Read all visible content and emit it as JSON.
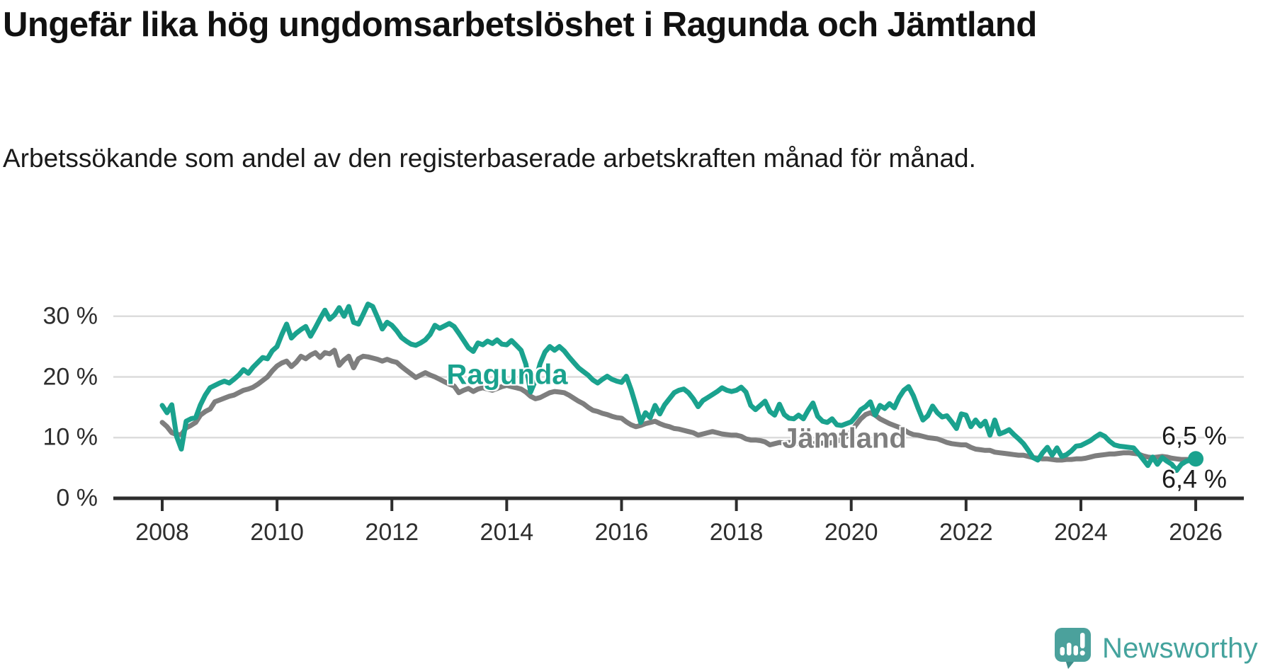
{
  "header": {
    "title": "Ungefär lika hög ungdomsarbetslöshet i Ragunda och Jämtland",
    "subtitle": "Arbetssökande som andel av den registerbaserade arbetskraften månad för månad."
  },
  "chart_data": {
    "type": "line",
    "title": "Ungefär lika hög ungdomsarbetslöshet i Ragunda och Jämtland",
    "xlabel": "",
    "ylabel": "Arbetssökande som andel av den registerbaserade arbetskraften",
    "x_start_year": 2008,
    "x_end_year": 2026,
    "x_step_months": 1,
    "x_ticks": [
      "2008",
      "2010",
      "2012",
      "2014",
      "2016",
      "2018",
      "2020",
      "2022",
      "2024",
      "2026"
    ],
    "y_ticks": [
      {
        "value": 30,
        "label": "30 %"
      },
      {
        "value": 20,
        "label": "20 %"
      },
      {
        "value": 10,
        "label": "10 %"
      },
      {
        "value": 0,
        "label": "0 %"
      }
    ],
    "ylim": [
      0,
      33
    ],
    "grid": "horizontal",
    "legend_position": "inline-labels",
    "series": [
      {
        "name": "Ragunda",
        "color": "#1aa28e",
        "end_label": "6,5 %",
        "end_marker": true,
        "values": [
          15.3,
          14.1,
          15.4,
          10.2,
          8.1,
          12.7,
          13.1,
          13.3,
          15.4,
          17.0,
          18.2,
          18.6,
          19.0,
          19.3,
          19.0,
          19.6,
          20.3,
          21.2,
          20.6,
          21.6,
          22.4,
          23.2,
          23.0,
          24.3,
          25.0,
          27.0,
          28.7,
          26.4,
          27.2,
          27.8,
          28.3,
          26.7,
          28.1,
          29.6,
          31.0,
          29.5,
          30.2,
          31.4,
          30.0,
          31.6,
          29.0,
          28.7,
          30.3,
          32.0,
          31.6,
          29.8,
          27.9,
          29.0,
          28.5,
          27.6,
          26.5,
          25.9,
          25.4,
          25.2,
          25.6,
          26.1,
          27.0,
          28.5,
          28.0,
          28.4,
          28.8,
          28.3,
          27.2,
          26.0,
          24.8,
          24.2,
          25.6,
          25.3,
          25.9,
          25.5,
          26.1,
          25.4,
          25.3,
          26.0,
          25.2,
          24.4,
          22.1,
          17.5,
          19.4,
          22.2,
          24.1,
          25.0,
          24.4,
          25.0,
          24.3,
          23.3,
          22.4,
          21.5,
          20.9,
          20.3,
          19.5,
          19.0,
          19.6,
          20.1,
          19.6,
          19.3,
          19.1,
          20.1,
          17.9,
          15.3,
          12.5,
          14.1,
          13.3,
          15.3,
          13.9,
          15.4,
          16.4,
          17.4,
          17.8,
          18.0,
          17.4,
          16.4,
          15.1,
          16.1,
          16.6,
          17.1,
          17.6,
          18.2,
          17.8,
          17.6,
          17.8,
          18.3,
          17.5,
          15.3,
          14.6,
          15.3,
          16.0,
          14.3,
          13.7,
          15.5,
          13.8,
          13.2,
          13.1,
          13.7,
          13.1,
          14.5,
          15.7,
          13.5,
          12.7,
          12.5,
          13.1,
          12.1,
          12.0,
          12.3,
          12.6,
          13.5,
          14.6,
          15.1,
          15.9,
          13.7,
          15.3,
          14.8,
          15.6,
          14.9,
          16.6,
          17.8,
          18.4,
          16.9,
          14.8,
          12.9,
          13.6,
          15.2,
          14.1,
          13.4,
          13.6,
          12.6,
          11.5,
          13.9,
          13.7,
          11.8,
          12.9,
          11.9,
          12.7,
          10.4,
          12.9,
          10.6,
          10.9,
          11.3,
          10.5,
          9.8,
          9.0,
          7.9,
          6.7,
          6.3,
          7.5,
          8.4,
          7.1,
          8.3,
          6.9,
          7.2,
          7.8,
          8.6,
          8.7,
          9.1,
          9.5,
          10.1,
          10.6,
          10.2,
          9.4,
          8.8,
          8.6,
          8.5,
          8.4,
          8.3,
          7.4,
          6.4,
          5.4,
          6.8,
          5.6,
          6.7,
          6.1,
          5.6,
          4.6,
          5.6,
          6.1,
          6.3,
          6.5
        ]
      },
      {
        "name": "Jämtland",
        "color": "#7e7e7e",
        "end_label": "6,4 %",
        "end_marker": false,
        "values": [
          12.5,
          11.8,
          10.8,
          10.5,
          10.5,
          11.6,
          12.0,
          12.5,
          13.7,
          14.3,
          14.7,
          15.9,
          16.2,
          16.5,
          16.8,
          17.0,
          17.4,
          17.8,
          18.0,
          18.3,
          18.8,
          19.4,
          20.0,
          21.0,
          21.8,
          22.3,
          22.6,
          21.7,
          22.4,
          23.4,
          23.0,
          23.6,
          24.0,
          23.2,
          24.0,
          23.8,
          24.4,
          21.9,
          22.8,
          23.4,
          21.5,
          23.0,
          23.4,
          23.3,
          23.1,
          22.9,
          22.6,
          22.9,
          22.6,
          22.4,
          21.7,
          21.1,
          20.5,
          19.9,
          20.3,
          20.7,
          20.3,
          20.0,
          19.6,
          19.2,
          18.8,
          18.5,
          17.4,
          17.8,
          18.1,
          17.6,
          18.0,
          18.2,
          18.0,
          17.8,
          18.1,
          18.4,
          18.6,
          18.4,
          18.2,
          18.0,
          17.5,
          16.8,
          16.4,
          16.6,
          17.0,
          17.4,
          17.6,
          17.5,
          17.4,
          17.0,
          16.5,
          16.0,
          15.6,
          15.0,
          14.5,
          14.3,
          14.0,
          13.8,
          13.5,
          13.3,
          13.2,
          12.6,
          12.1,
          11.8,
          12.0,
          12.3,
          12.5,
          12.7,
          12.3,
          12.0,
          11.8,
          11.5,
          11.4,
          11.2,
          11.0,
          10.8,
          10.4,
          10.6,
          10.8,
          11.0,
          10.8,
          10.6,
          10.5,
          10.4,
          10.4,
          10.2,
          9.8,
          9.6,
          9.6,
          9.5,
          9.3,
          8.8,
          9.0,
          9.2,
          9.1,
          9.2,
          9.1,
          9.0,
          8.9,
          8.9,
          9.0,
          9.0,
          9.1,
          9.0,
          9.2,
          9.4,
          9.7,
          10.2,
          11.0,
          12.1,
          13.1,
          13.8,
          14.1,
          13.7,
          13.1,
          12.7,
          12.3,
          12.0,
          11.7,
          11.3,
          10.8,
          10.5,
          10.4,
          10.2,
          10.0,
          9.9,
          9.8,
          9.5,
          9.2,
          9.0,
          8.9,
          8.8,
          8.8,
          8.4,
          8.1,
          8.0,
          7.9,
          7.9,
          7.6,
          7.5,
          7.4,
          7.3,
          7.2,
          7.1,
          7.1,
          6.9,
          6.7,
          6.6,
          6.5,
          6.5,
          6.4,
          6.3,
          6.3,
          6.4,
          6.4,
          6.5,
          6.5,
          6.6,
          6.8,
          7.0,
          7.1,
          7.2,
          7.3,
          7.3,
          7.4,
          7.5,
          7.5,
          7.4,
          7.3,
          7.0,
          6.8,
          6.7,
          6.8,
          6.9,
          6.8,
          6.6,
          6.5,
          6.4,
          6.4,
          6.4,
          6.4
        ]
      }
    ]
  },
  "annotations": {
    "ragunda_label": "Ragunda",
    "jamtland_label": "Jämtland",
    "end_label_ragunda": "6,5 %",
    "end_label_jamtland": "6,4 %"
  },
  "footer": {
    "brand": "Newsworthy"
  },
  "colors": {
    "ragunda_teal": "#1aa28e",
    "jamtland_gray": "#7e7e7e",
    "grid": "#dcdcdc",
    "axis": "#2d2d2d",
    "tick_text": "#2e2e2e",
    "text": "#111111",
    "brand_teal": "#44a39d",
    "logo_fill": "#4ba19c",
    "logo_shade": "#3e8e8a"
  }
}
